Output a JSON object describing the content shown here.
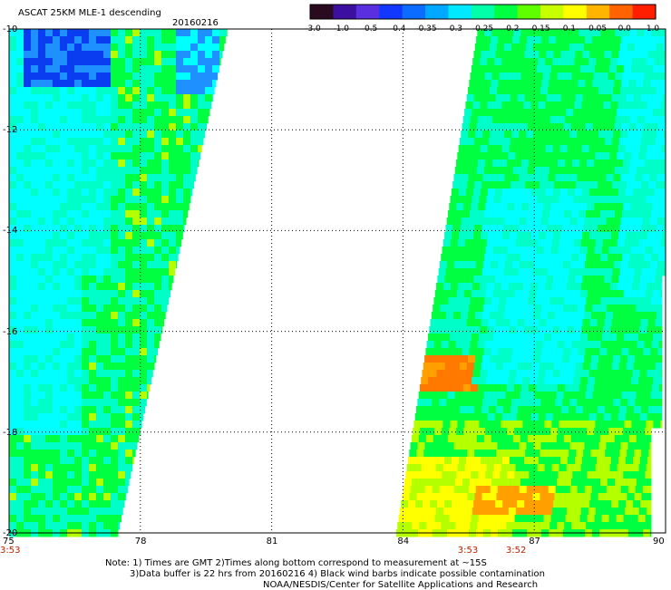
{
  "header": {
    "title": "ASCAT 25KM MLE-1 descending",
    "date": "20160216"
  },
  "colorbar": {
    "labels": [
      "-3.0",
      "-1.0",
      "-0.5",
      "-0.4",
      "-0.35",
      "-0.3",
      "-0.25",
      "-0.2",
      "-0.15",
      "-0.1",
      "-0.05",
      "0.0",
      "1.0"
    ],
    "colors": [
      "#2a0a1e",
      "#3c0fa0",
      "#5a2fe0",
      "#1238ff",
      "#0b6cff",
      "#00a8ff",
      "#00e8ff",
      "#00ffa8",
      "#00ff40",
      "#60ff00",
      "#c8ff00",
      "#ffff00",
      "#ffb400",
      "#ff6400",
      "#ff1e00"
    ]
  },
  "axes": {
    "x_ticks": [
      "75",
      "78",
      "81",
      "84",
      "87",
      "90"
    ],
    "y_ticks": [
      "-10",
      "-12",
      "-14",
      "-16",
      "-18",
      "-20"
    ],
    "x_range": [
      75,
      90
    ],
    "y_range": [
      -20,
      -10
    ],
    "grid": true
  },
  "time_labels": [
    {
      "text": "3:53",
      "lon": 75
    },
    {
      "text": "3:53",
      "lon": 85.5
    },
    {
      "text": "3:52",
      "lon": 86.6
    }
  ],
  "notes": {
    "line1": "Note: 1) Times are GMT 2)Times along bottom correspond to measurement at ~15S",
    "line2": "3)Data buffer is 22 hrs from 20160216 4) Black wind barbs indicate possible contamination",
    "line3": "NOAA/NESDIS/Center for Satellite Applications and Research"
  },
  "map_colors": {
    "deep_blue": "#0a3cf0",
    "blue": "#1e90ff",
    "cyan": "#00ffff",
    "aqua": "#00ffc8",
    "green": "#00ff40",
    "yellowgreen": "#b4ff00",
    "yellow": "#ffff00",
    "orange": "#ffa000",
    "deep_orange": "#ff7800"
  }
}
